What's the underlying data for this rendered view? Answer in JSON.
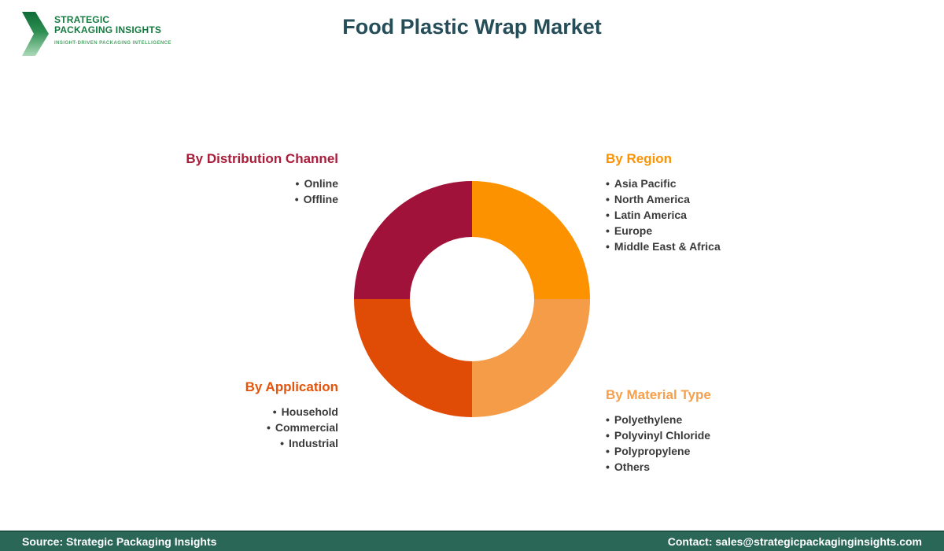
{
  "logo": {
    "line1": "STRATEGIC",
    "line2": "PACKAGING INSIGHTS",
    "tagline": "INSIGHT-DRIVEN PACKAGING INTELLIGENCE"
  },
  "header": {
    "title": "Food Plastic Wrap Market"
  },
  "chart_data": {
    "type": "pie",
    "donut": true,
    "title": "Food Plastic Wrap Market",
    "legend_position": "corners",
    "slices": [
      {
        "label": "By Region",
        "value": 25,
        "color": "#FC9200",
        "position": "top-right"
      },
      {
        "label": "By Material Type",
        "value": 25,
        "color": "#F49C48",
        "position": "bottom-right"
      },
      {
        "label": "By Application",
        "value": 25,
        "color": "#E04B06",
        "position": "bottom-left"
      },
      {
        "label": "By Distribution Channel",
        "value": 25,
        "color": "#A1123A",
        "position": "top-left"
      }
    ]
  },
  "sections": {
    "distribution": {
      "title": "By Distribution Channel",
      "color": "#A91D3A",
      "items": [
        "Online",
        "Offline"
      ]
    },
    "region": {
      "title": "By Region",
      "color": "#FB9303",
      "items": [
        "Asia Pacific",
        "North America",
        "Latin America",
        "Europe",
        "Middle East & Africa"
      ]
    },
    "application": {
      "title": "By Application",
      "color": "#E4540B",
      "items": [
        "Household",
        "Commercial",
        "Industrial"
      ]
    },
    "material": {
      "title": "By Material Type",
      "color": "#F5A04D",
      "items": [
        "Polyethylene",
        "Polyvinyl Chloride",
        "Polypropylene",
        "Others"
      ]
    }
  },
  "footer": {
    "source": "Source: Strategic Packaging Insights",
    "contact": "Contact: sales@strategicpackaginginsights.com"
  },
  "colors": {
    "title_text": "#254E58",
    "logo_green": "#157A40",
    "logo_tagline_green": "#4AA465",
    "footer_background": "#2B6757",
    "body_text": "#3A3A3A"
  }
}
